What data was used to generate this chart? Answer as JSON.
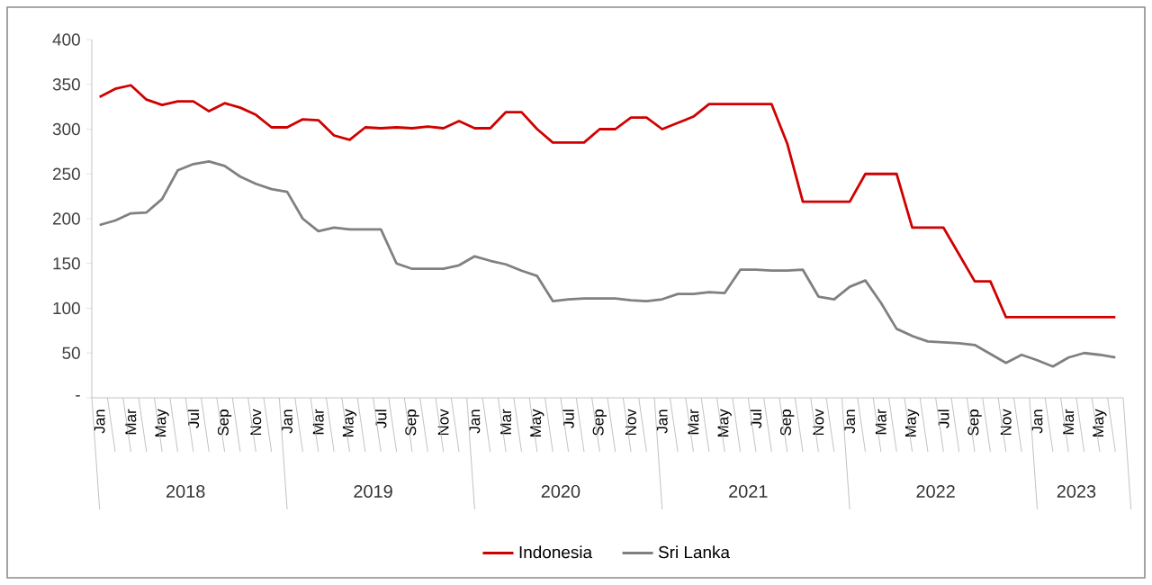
{
  "chart_data": {
    "type": "line",
    "categories": [
      "Jan",
      null,
      "Mar",
      null,
      "May",
      null,
      "Jul",
      null,
      "Sep",
      null,
      "Nov",
      null,
      "Jan",
      null,
      "Mar",
      null,
      "May",
      null,
      "Jul",
      null,
      "Sep",
      null,
      "Nov",
      null,
      "Jan",
      null,
      "Mar",
      null,
      "May",
      null,
      "Jul",
      null,
      "Sep",
      null,
      "Nov",
      null,
      "Jan",
      null,
      "Mar",
      null,
      "May",
      null,
      "Jul",
      null,
      "Sep",
      null,
      "Nov",
      null,
      "Jan",
      null,
      "Mar",
      null,
      "May",
      null,
      "Jul",
      null,
      "Sep",
      null,
      "Nov",
      null,
      "Jan",
      null,
      "Mar",
      null,
      "May",
      null
    ],
    "series": [
      {
        "name": "Indonesia",
        "color": "#d00000",
        "values": [
          336,
          345,
          349,
          333,
          327,
          331,
          331,
          320,
          329,
          324,
          316,
          302,
          302,
          311,
          310,
          293,
          288,
          302,
          301,
          302,
          301,
          303,
          301,
          309,
          301,
          301,
          319,
          319,
          300,
          285,
          285,
          285,
          300,
          300,
          313,
          313,
          300,
          307,
          314,
          328,
          328,
          328,
          328,
          328,
          284,
          219,
          219,
          219,
          219,
          250,
          250,
          250,
          190,
          190,
          190,
          160,
          130,
          130,
          90,
          90,
          90,
          90,
          90,
          90,
          90,
          90
        ]
      },
      {
        "name": "Sri Lanka",
        "color": "#808080",
        "values": [
          193,
          198,
          206,
          207,
          222,
          254,
          261,
          264,
          259,
          247,
          239,
          233,
          230,
          200,
          186,
          190,
          188,
          188,
          188,
          150,
          144,
          144,
          144,
          148,
          158,
          153,
          149,
          142,
          136,
          108,
          110,
          111,
          111,
          111,
          109,
          108,
          110,
          116,
          116,
          118,
          117,
          143,
          143,
          142,
          142,
          143,
          113,
          110,
          124,
          131,
          106,
          77,
          69,
          63,
          62,
          61,
          59,
          49,
          39,
          48,
          42,
          35,
          45,
          50,
          48,
          45
        ]
      }
    ],
    "ylim": [
      0,
      400
    ],
    "yticks": [
      {
        "value": 0,
        "label": "-"
      },
      50,
      100,
      150,
      200,
      250,
      300,
      350,
      400
    ],
    "annotations": [
      "2018",
      "2019",
      "2020",
      "2021",
      "2022",
      "2023"
    ],
    "legend": "bottom",
    "grid": false,
    "marker": "none",
    "line_style": "solid"
  }
}
